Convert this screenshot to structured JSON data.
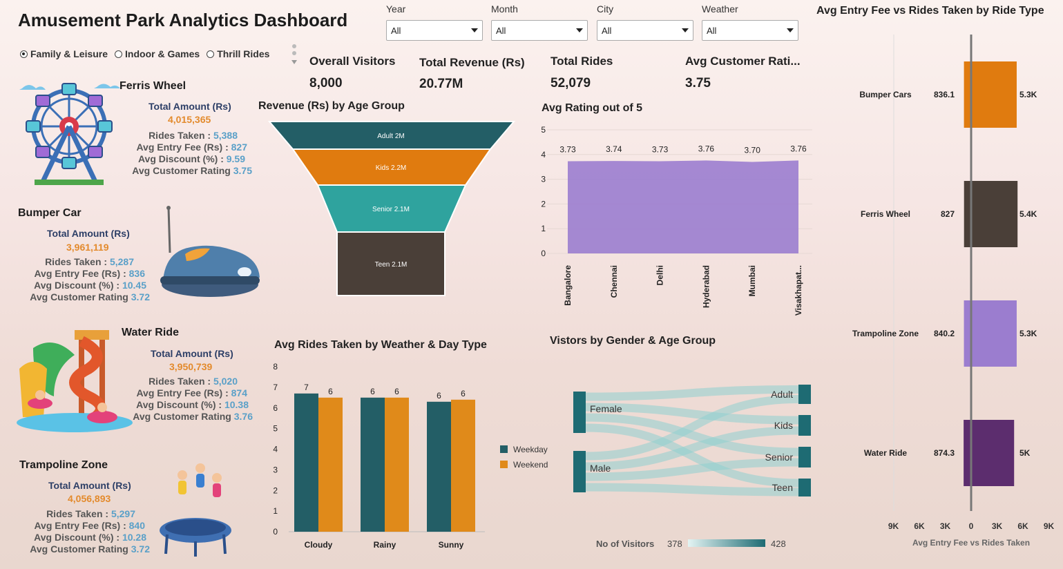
{
  "header": {
    "title": "Amusement Park Analytics Dashboard"
  },
  "filters": [
    {
      "label": "Year",
      "value": "All"
    },
    {
      "label": "Month",
      "value": "All"
    },
    {
      "label": "City",
      "value": "All"
    },
    {
      "label": "Weather",
      "value": "All"
    }
  ],
  "categories": [
    {
      "label": "Family & Leisure",
      "selected": true
    },
    {
      "label": "Indoor & Games",
      "selected": false
    },
    {
      "label": "Thrill Rides",
      "selected": false
    }
  ],
  "kpis": [
    {
      "label": "Overall Visitors",
      "value": "8,000"
    },
    {
      "label": "Total Revenue (Rs)",
      "value": "20.77M"
    },
    {
      "label": "Total Rides",
      "value": "52,079"
    },
    {
      "label": "Avg Customer Rati...",
      "value": "3.75"
    }
  ],
  "rides": [
    {
      "name": "Ferris Wheel",
      "amount_label": "Total Amount (Rs)",
      "amount": "4,015,365",
      "rides_label": "Rides Taken :",
      "rides": "5,388",
      "fee_label": "Avg Entry Fee (Rs) :",
      "fee": "827",
      "disc_label": "Avg Discount (%) :",
      "disc": "9.59",
      "rating_label": "Avg Customer Rating",
      "rating": "3.75",
      "icon": "ferris-wheel-icon"
    },
    {
      "name": "Bumper Car",
      "amount_label": "Total Amount (Rs)",
      "amount": "3,961,119",
      "rides_label": "Rides Taken :",
      "rides": "5,287",
      "fee_label": "Avg Entry Fee (Rs) :",
      "fee": "836",
      "disc_label": "Avg Discount (%) :",
      "disc": "10.45",
      "rating_label": "Avg Customer Rating",
      "rating": "3.72",
      "icon": "bumper-car-icon"
    },
    {
      "name": "Water Ride",
      "amount_label": "Total Amount (Rs)",
      "amount": "3,950,739",
      "rides_label": "Rides Taken :",
      "rides": "5,020",
      "fee_label": "Avg Entry Fee (Rs) :",
      "fee": "874",
      "disc_label": "Avg Discount (%) :",
      "disc": "10.38",
      "rating_label": "Avg Customer Rating",
      "rating": "3.76",
      "icon": "water-slide-icon"
    },
    {
      "name": "Trampoline Zone",
      "amount_label": "Total Amount (Rs)",
      "amount": "4,056,893",
      "rides_label": "Rides Taken :",
      "rides": "5,297",
      "fee_label": "Avg Entry Fee (Rs) :",
      "fee": "840",
      "disc_label": "Avg Discount (%) :",
      "disc": "10.28",
      "rating_label": "Avg Customer Rating",
      "rating": "3.72",
      "icon": "trampoline-icon"
    }
  ],
  "chart_data": [
    {
      "type": "funnel",
      "title": "Revenue (Rs) by Age Group",
      "categories": [
        "Adult",
        "Kids",
        "Senior",
        "Teen"
      ],
      "values": [
        2.0,
        2.2,
        2.1,
        2.1
      ],
      "labels": [
        "Adult 2M",
        "Kids 2.2M",
        "Senior 2.1M",
        "Teen 2.1M"
      ],
      "colors": [
        "#235e66",
        "#e07b0f",
        "#2fa39e",
        "#4a3f38"
      ]
    },
    {
      "type": "area",
      "title": "Avg Rating out of 5",
      "categories": [
        "Bangalore",
        "Chennai",
        "Delhi",
        "Hyderabad",
        "Mumbai",
        "Visakhapat..."
      ],
      "values": [
        3.73,
        3.74,
        3.73,
        3.76,
        3.7,
        3.76
      ],
      "labels": [
        "3.73",
        "3.74",
        "3.73",
        "3.76",
        "3.70",
        "3.76"
      ],
      "ylim": [
        0,
        5
      ],
      "yticks": [
        "0",
        "1",
        "2",
        "3",
        "4",
        "5"
      ],
      "color": "#9b7dcf"
    },
    {
      "type": "bar",
      "title": "Avg Rides Taken by Weather & Day Type",
      "categories": [
        "Cloudy",
        "Rainy",
        "Sunny"
      ],
      "series": [
        {
          "name": "Weekday",
          "values": [
            6.7,
            6.5,
            6.3
          ],
          "labels": [
            "7",
            "6",
            "6"
          ],
          "color": "#235e66"
        },
        {
          "name": "Weekend",
          "values": [
            6.5,
            6.5,
            6.4
          ],
          "labels": [
            "6",
            "6",
            "6"
          ],
          "color": "#e08a1a"
        }
      ],
      "ylim": [
        0,
        8
      ],
      "yticks": [
        "0",
        "1",
        "2",
        "3",
        "4",
        "5",
        "6",
        "7",
        "8"
      ]
    },
    {
      "type": "sankey",
      "title": "Vistors by Gender & Age Group",
      "sources": [
        "Female",
        "Male"
      ],
      "targets": [
        "Adult",
        "Kids",
        "Senior",
        "Teen"
      ],
      "legend_label": "No of Visitors",
      "legend_min": "378",
      "legend_max": "428"
    },
    {
      "type": "bar",
      "title": "Avg Entry Fee vs Rides Taken by Ride Type",
      "categories": [
        "Bumper Cars",
        "Ferris Wheel",
        "Trampoline Zone",
        "Water Ride"
      ],
      "fee_values": [
        836.1,
        827,
        840.2,
        874.3
      ],
      "fee_labels": [
        "836.1",
        "827",
        "840.2",
        "874.3"
      ],
      "rides_values": [
        5300,
        5400,
        5300,
        5000
      ],
      "rides_labels": [
        "5.3K",
        "5.4K",
        "5.3K",
        "5K"
      ],
      "colors": [
        "#e07b0f",
        "#4a3f38",
        "#9b7dcf",
        "#5c2d6e"
      ],
      "xticks": [
        "9K",
        "6K",
        "3K",
        "0",
        "3K",
        "6K",
        "9K"
      ],
      "xlabel": "Avg Entry Fee vs Rides Taken"
    }
  ]
}
